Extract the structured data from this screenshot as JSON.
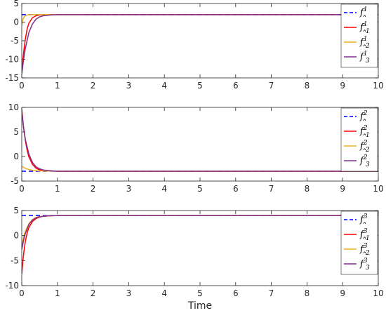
{
  "chart_data": [
    {
      "type": "line",
      "xlim": [
        0,
        10
      ],
      "ylim": [
        -15,
        5
      ],
      "xticks": [
        "0",
        "1",
        "2",
        "3",
        "4",
        "5",
        "6",
        "7",
        "8",
        "9",
        "10"
      ],
      "yticks": [
        "-15",
        "-10",
        "-5",
        "0",
        "5"
      ],
      "grid": false,
      "legend_position": "top-right",
      "series": [
        {
          "name": "f^1",
          "legend_base": "f",
          "legend_sup": "1",
          "legend_sub": "",
          "hat": false,
          "color": "#0000ff",
          "style": "dashed",
          "x": [
            0,
            10
          ],
          "y": [
            2,
            2
          ]
        },
        {
          "name": "̂f_1^1",
          "legend_base": "f",
          "legend_sup": "1",
          "legend_sub": "1",
          "hat": true,
          "color": "#ff0000",
          "style": "solid",
          "x": [
            0,
            0.05,
            0.1,
            0.15,
            0.2,
            0.3,
            0.4,
            0.5,
            0.6,
            0.8,
            1.0,
            10
          ],
          "y": [
            -13.5,
            -8.3,
            -4.6,
            -1.9,
            -0.3,
            1.2,
            1.7,
            1.9,
            1.95,
            2,
            2,
            2
          ]
        },
        {
          "name": "̂f_2^1",
          "legend_base": "f",
          "legend_sup": "1",
          "legend_sub": "2",
          "hat": true,
          "color": "#edb120",
          "style": "solid",
          "x": [
            0,
            0.03,
            0.06,
            0.1,
            0.15,
            0.2,
            0.3,
            0.5,
            1.0,
            1.7
          ],
          "y": [
            -1,
            0.6,
            1.3,
            1.7,
            1.9,
            1.95,
            2,
            2,
            2,
            2
          ]
        },
        {
          "name": "̂f_3^1",
          "legend_base": "f",
          "legend_sup": "1",
          "legend_sub": "3",
          "hat": true,
          "color": "#7e2f8e",
          "style": "solid",
          "x": [
            0,
            0.05,
            0.1,
            0.2,
            0.3,
            0.4,
            0.5,
            0.6,
            0.8,
            1.0,
            10
          ],
          "y": [
            -14,
            -10.2,
            -7.1,
            -2.8,
            -0.5,
            0.8,
            1.4,
            1.7,
            1.9,
            2,
            2
          ]
        }
      ]
    },
    {
      "type": "line",
      "xlim": [
        0,
        10
      ],
      "ylim": [
        -5,
        10
      ],
      "xticks": [
        "0",
        "1",
        "2",
        "3",
        "4",
        "5",
        "6",
        "7",
        "8",
        "9",
        "10"
      ],
      "yticks": [
        "-5",
        "0",
        "5",
        "10"
      ],
      "grid": false,
      "legend_position": "top-right",
      "series": [
        {
          "name": "f^2",
          "legend_base": "f",
          "legend_sup": "2",
          "legend_sub": "",
          "hat": false,
          "color": "#0000ff",
          "style": "dashed",
          "x": [
            0,
            10
          ],
          "y": [
            -3,
            -3
          ]
        },
        {
          "name": "̂f_1^2",
          "legend_base": "f",
          "legend_sup": "2",
          "legend_sub": "1",
          "hat": true,
          "color": "#ff0000",
          "style": "solid",
          "x": [
            0,
            0.05,
            0.1,
            0.15,
            0.2,
            0.3,
            0.4,
            0.5,
            0.6,
            0.8,
            1.0,
            10
          ],
          "y": [
            9.6,
            6,
            3.3,
            1.3,
            -0.1,
            -1.6,
            -2.4,
            -2.7,
            -2.85,
            -2.95,
            -3,
            -3
          ]
        },
        {
          "name": "̂f_2^2",
          "legend_base": "f",
          "legend_sup": "2",
          "legend_sub": "2",
          "hat": true,
          "color": "#edb120",
          "style": "solid",
          "x": [
            0,
            0.05,
            0.1,
            0.15,
            0.2,
            0.3,
            0.4,
            0.5,
            0.7,
            1.0,
            10
          ],
          "y": [
            -2,
            -2.2,
            -2.4,
            -2.55,
            -2.65,
            -2.8,
            -2.88,
            -2.93,
            -2.97,
            -3,
            -3
          ]
        },
        {
          "name": "̂f_3^2",
          "legend_base": "f",
          "legend_sup": "2",
          "legend_sub": "3",
          "hat": true,
          "color": "#7e2f8e",
          "style": "solid",
          "x": [
            0,
            0.05,
            0.1,
            0.2,
            0.3,
            0.4,
            0.5,
            0.6,
            0.8,
            1.0,
            10
          ],
          "y": [
            9.2,
            5.9,
            3.5,
            0.5,
            -1.2,
            -2.1,
            -2.5,
            -2.75,
            -2.9,
            -3,
            -3
          ]
        }
      ]
    },
    {
      "type": "line",
      "xlim": [
        0,
        10
      ],
      "ylim": [
        -10,
        5
      ],
      "xticks": [
        "0",
        "1",
        "2",
        "3",
        "4",
        "5",
        "6",
        "7",
        "8",
        "9",
        "10"
      ],
      "yticks": [
        "-10",
        "-5",
        "0",
        "5"
      ],
      "xlabel": "Time",
      "grid": false,
      "legend_position": "top-right",
      "series": [
        {
          "name": "f^3",
          "legend_base": "f",
          "legend_sup": "3",
          "legend_sub": "",
          "hat": false,
          "color": "#0000ff",
          "style": "dashed",
          "x": [
            0,
            10
          ],
          "y": [
            4,
            4
          ]
        },
        {
          "name": "̂f_1^3",
          "legend_base": "f",
          "legend_sup": "3",
          "legend_sub": "1",
          "hat": true,
          "color": "#ff0000",
          "style": "solid",
          "x": [
            0,
            0.03,
            0.06,
            0.1,
            0.15,
            0.2,
            0.3,
            0.4,
            0.5,
            0.6,
            0.8,
            1.0,
            10
          ],
          "y": [
            -7.7,
            -5.2,
            -3.2,
            -1.2,
            0.5,
            1.6,
            2.8,
            3.4,
            3.7,
            3.85,
            3.95,
            4,
            4
          ]
        },
        {
          "name": "̂f_2^3",
          "legend_base": "f",
          "legend_sup": "3",
          "legend_sub": "2",
          "hat": true,
          "color": "#edb120",
          "style": "solid",
          "x": [
            0,
            0.05,
            0.1,
            0.2,
            0.3,
            0.4,
            0.5,
            0.7,
            1.0,
            10
          ],
          "y": [
            -2,
            -0.3,
            0.9,
            2.4,
            3.2,
            3.6,
            3.8,
            3.95,
            4,
            4
          ]
        },
        {
          "name": "̂f_3^3",
          "legend_base": "f",
          "legend_sup": "3",
          "legend_sub": "3",
          "hat": true,
          "color": "#7e2f8e",
          "style": "solid",
          "x": [
            0,
            0.05,
            0.1,
            0.2,
            0.3,
            0.4,
            0.5,
            0.7,
            1.0,
            10
          ],
          "y": [
            -2.8,
            -1,
            0.4,
            2.2,
            3.1,
            3.55,
            3.75,
            3.93,
            4,
            4
          ]
        }
      ]
    }
  ]
}
